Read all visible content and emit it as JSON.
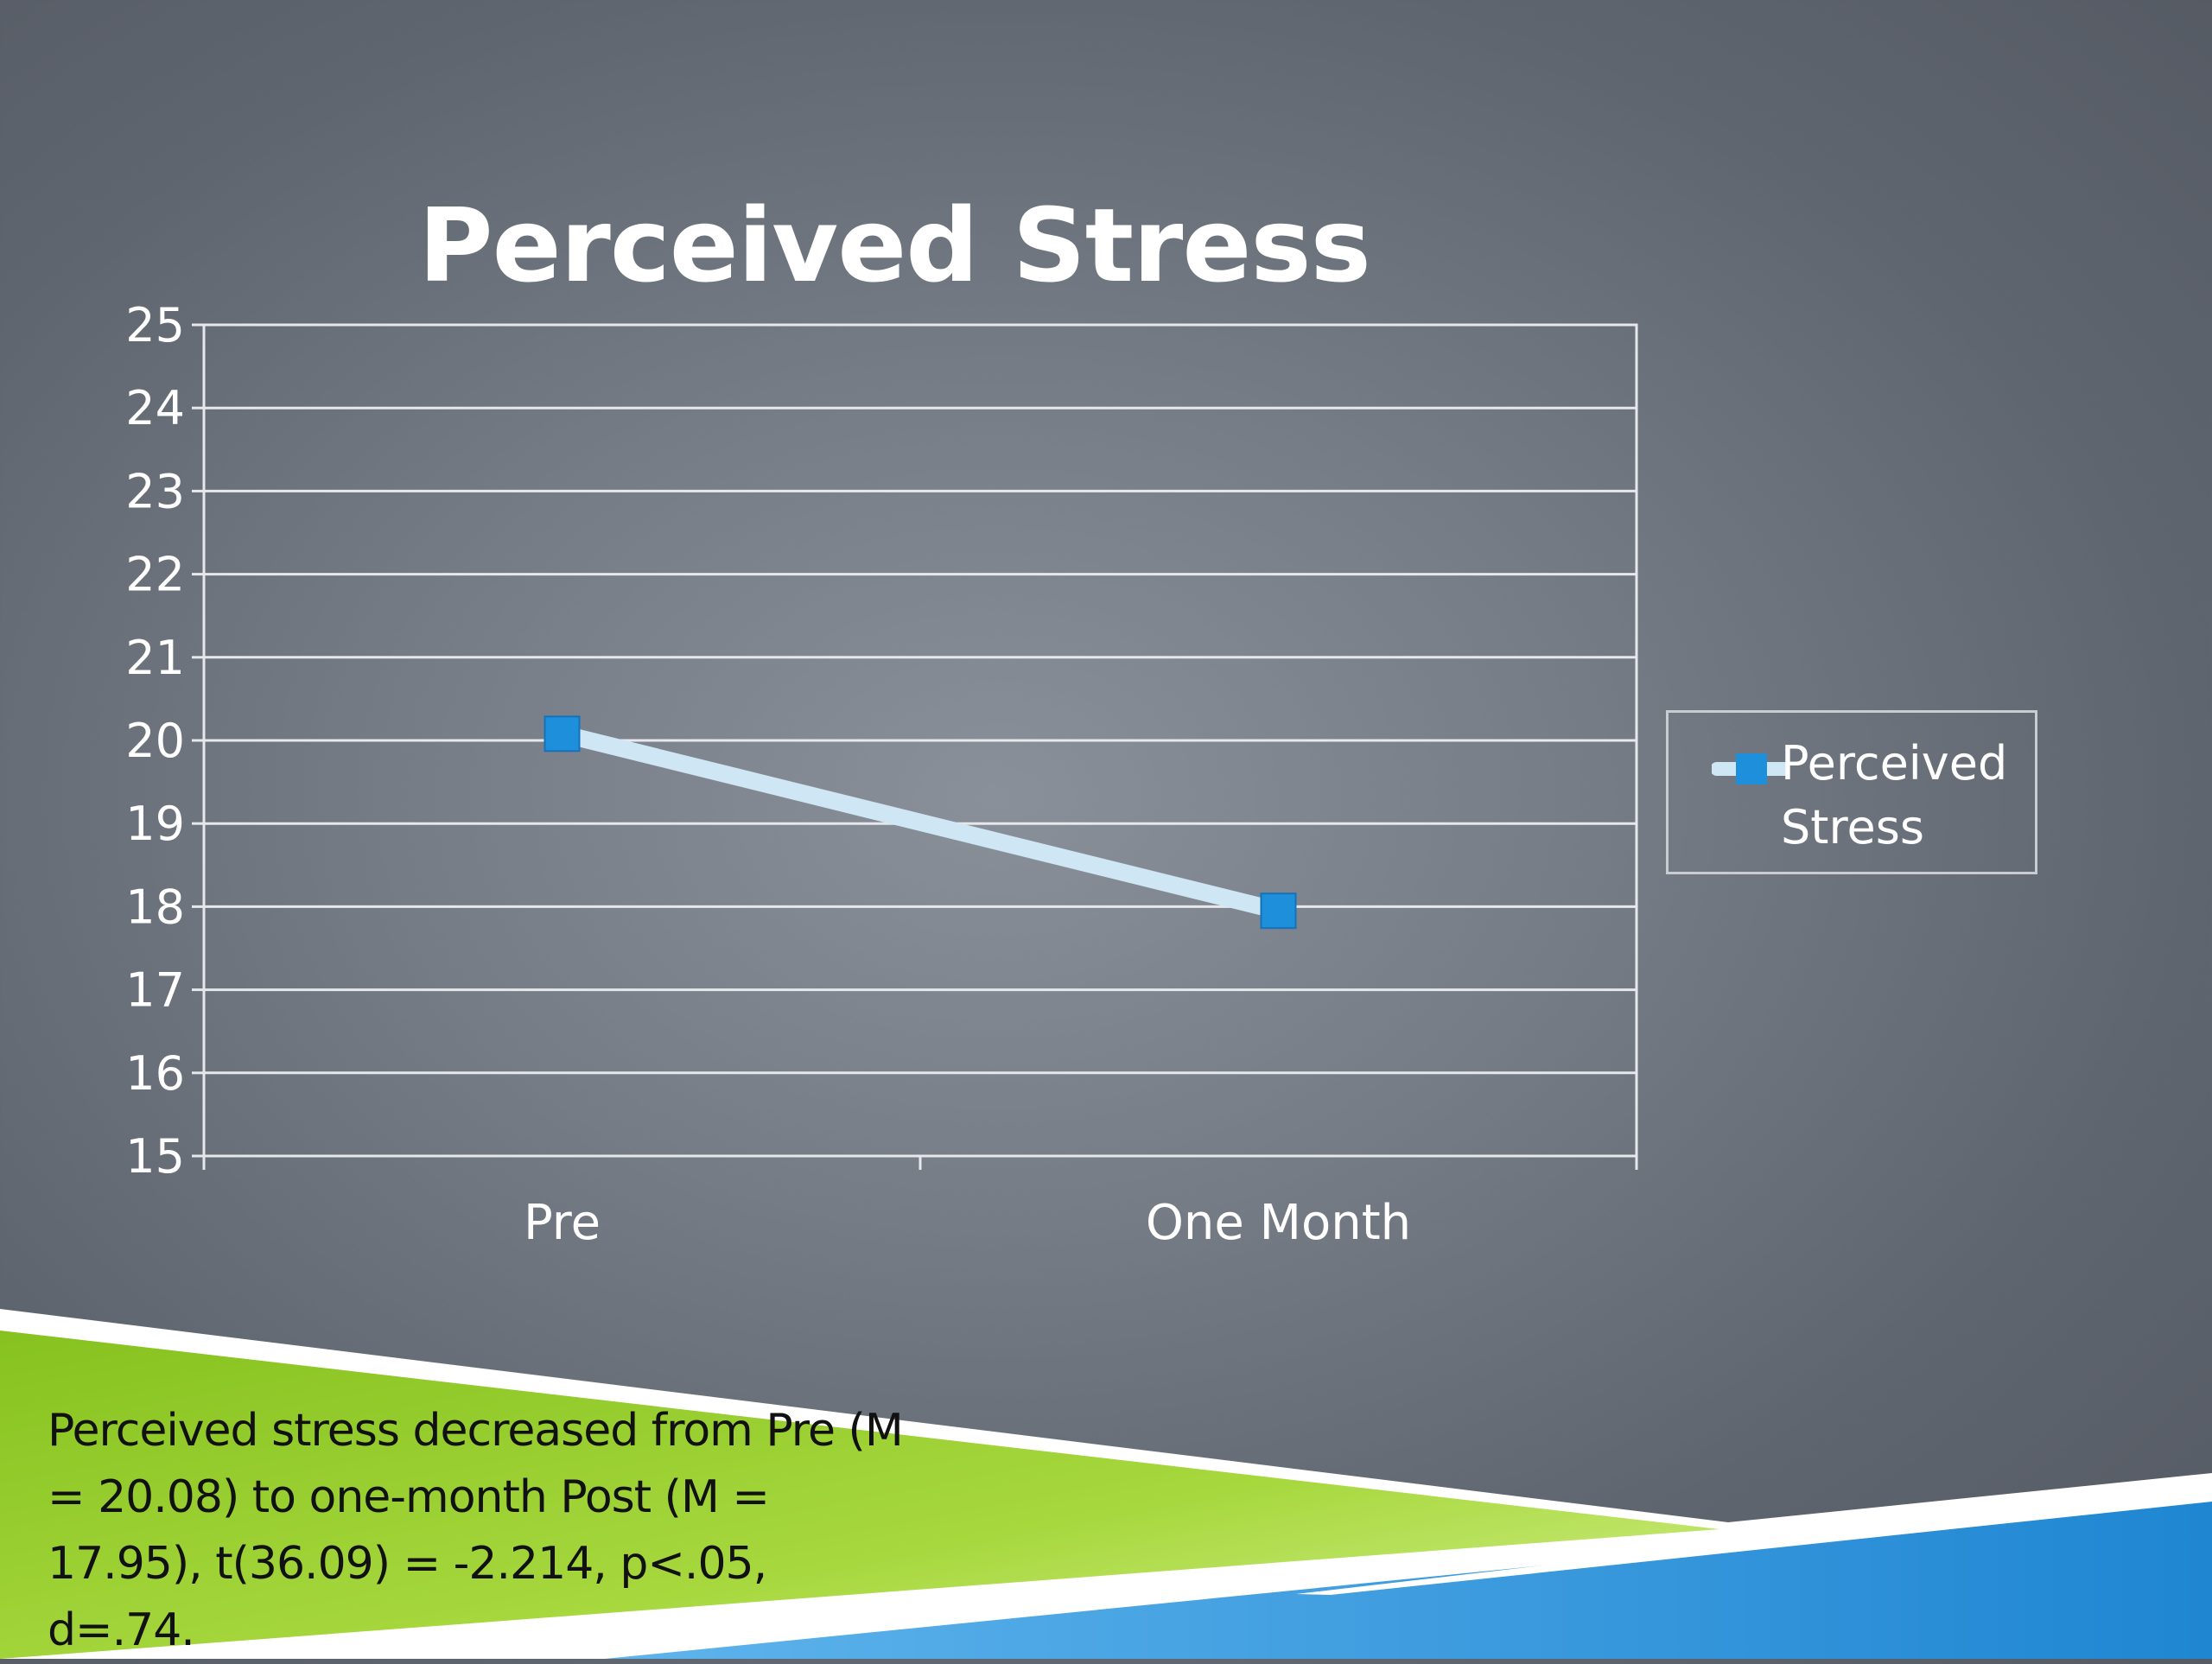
{
  "colors": {
    "line": "#cfe6f5",
    "marker": "#1e8fdb",
    "grid": "#e6e8eb",
    "accent_green": "#9fd33a",
    "accent_blue": "#2a8fd6"
  },
  "legend": {
    "label": "Perceived Stress",
    "marker_icon": "square-marker-icon"
  },
  "caption": {
    "text": "Perceived stress decreased from Pre (M = 20.08) to one-month Post (M = 17.95), t(36.09) = -2.214, p<.05, d=.74."
  },
  "chart_data": {
    "type": "line",
    "title": "Perceived Stress",
    "categories": [
      "Pre",
      "One Month"
    ],
    "series": [
      {
        "name": "Perceived Stress",
        "values": [
          20.08,
          17.95
        ]
      }
    ],
    "ylim": [
      15,
      25
    ],
    "yticks": [
      15,
      16,
      17,
      18,
      19,
      20,
      21,
      22,
      23,
      24,
      25
    ],
    "grid": true,
    "legend_position": "right"
  }
}
